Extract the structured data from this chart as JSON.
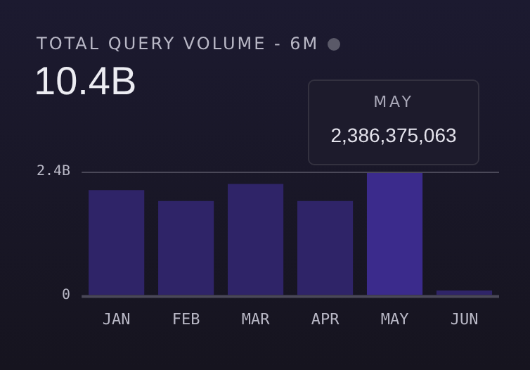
{
  "chart_data": {
    "type": "bar",
    "title": "TOTAL QUERY VOLUME - 6M",
    "subtitle": "10.4B",
    "categories": [
      "JAN",
      "FEB",
      "MAR",
      "APR",
      "MAY",
      "JUN"
    ],
    "values": [
      2.04,
      1.83,
      2.16,
      1.83,
      2.39,
      0.09
    ],
    "colors": [
      "#2f2468",
      "#2f2468",
      "#2f2468",
      "#2f2468",
      "#3b2b8c",
      "#2f2468"
    ],
    "ylim": [
      0,
      2.4
    ],
    "yticks": [
      0,
      {
        "value": 2.4,
        "label": "2.4B"
      }
    ],
    "grid": false,
    "legend": false,
    "annotations": [
      "MAY",
      "2,386,375,063"
    ]
  }
}
